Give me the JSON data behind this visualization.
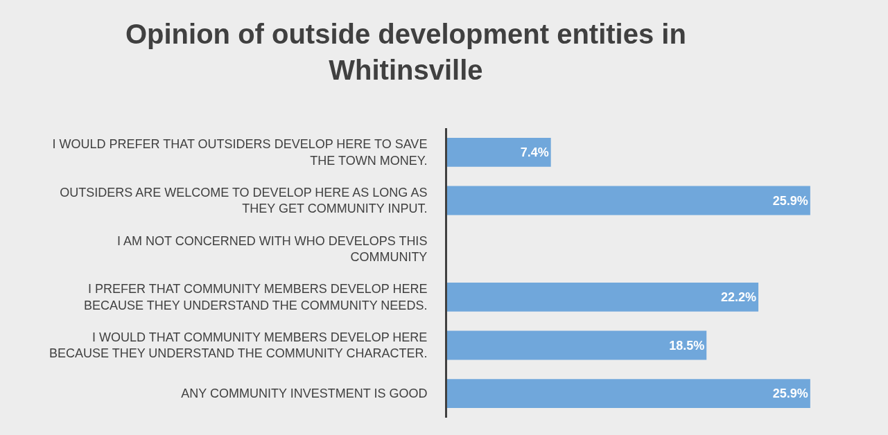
{
  "chart_data": {
    "type": "bar",
    "orientation": "horizontal",
    "title": "Opinion of outside development entities in Whitinsville",
    "categories": [
      "I WOULD PREFER THAT OUTSIDERS DEVELOP HERE TO SAVE THE TOWN MONEY.",
      "OUTSIDERS ARE WELCOME TO DEVELOP HERE AS LONG AS THEY GET COMMUNITY INPUT.",
      "I AM NOT CONCERNED WITH WHO DEVELOPS THIS COMMUNITY",
      "I PREFER THAT COMMUNITY MEMBERS DEVELOP HERE BECAUSE THEY UNDERSTAND THE COMMUNITY NEEDS.",
      "I WOULD THAT COMMUNITY MEMBERS DEVELOP HERE BECAUSE THEY UNDERSTAND THE COMMUNITY CHARACTER.",
      "ANY COMMUNITY INVESTMENT IS GOOD"
    ],
    "values": [
      7.4,
      25.9,
      null,
      22.2,
      18.5,
      25.9
    ],
    "value_labels": [
      "7.4%",
      "25.9%",
      null,
      "22.2%",
      "18.5%",
      "25.9%"
    ],
    "color": "#70a7db",
    "grid": false,
    "legend": false
  }
}
